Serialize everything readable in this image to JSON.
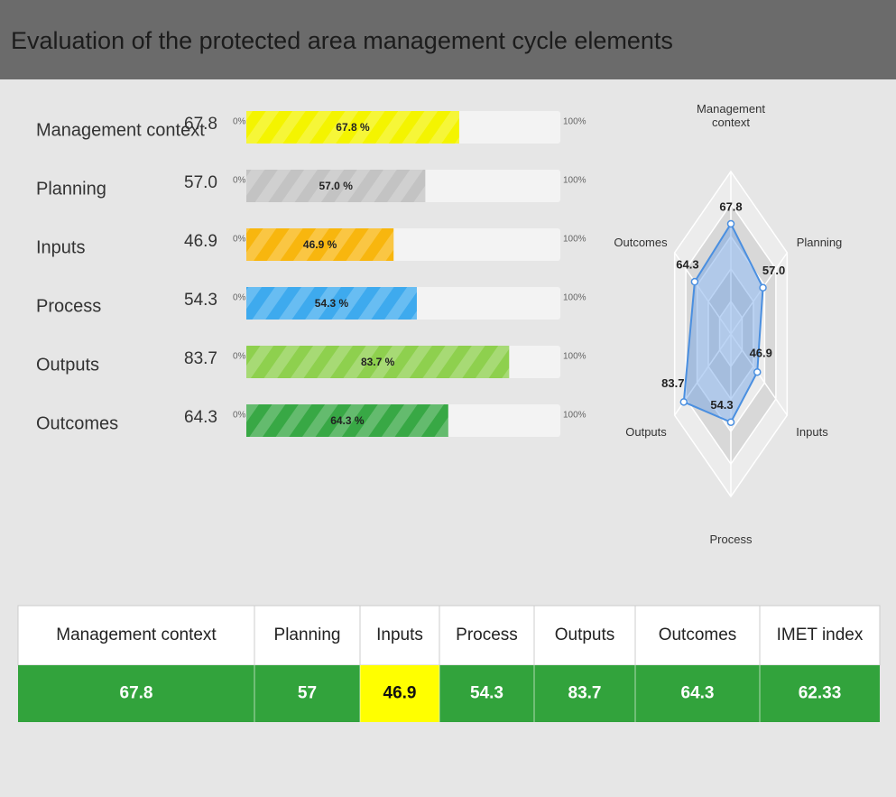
{
  "header": {
    "title": "Evaluation of the protected area management cycle elements"
  },
  "progress": {
    "labels": [
      "Management context",
      "Planning",
      "Inputs",
      "Process",
      "Outputs",
      "Outcomes"
    ],
    "values": [
      67.8,
      57,
      46.9,
      54.3,
      83.7,
      64.3
    ],
    "value_labels": [
      "67.8",
      "57.0",
      "46.9",
      "54.3",
      "83.7",
      "64.3"
    ],
    "bar_labels": [
      "67.8 %",
      "57.0 %",
      "46.9 %",
      "54.3 %",
      "83.7 %",
      "64.3 %"
    ],
    "colors": [
      "#f4f400",
      "#c3c3c3",
      "#f8b60e",
      "#3eaaee",
      "#8ed04e",
      "#38a845"
    ],
    "ticks": [
      {
        "value": 0,
        "label": "0%"
      },
      {
        "value": 100,
        "label": "100%"
      }
    ]
  },
  "radar": {
    "axes": [
      "Management context",
      "Planning",
      "Inputs",
      "Process",
      "Outputs",
      "Outcomes"
    ],
    "values": [
      67.8,
      57,
      46.9,
      54.3,
      83.7,
      64.3
    ],
    "value_labels": [
      "67.8",
      "57.0",
      "46.9",
      "54.3",
      "83.7",
      "64.3"
    ],
    "rmax": 100,
    "rings": 5,
    "color": "#4a8fe0"
  },
  "table": {
    "headers": [
      "Management context",
      "Planning",
      "Inputs",
      "Process",
      "Outputs",
      "Outcomes",
      "IMET index"
    ],
    "values": [
      67.8,
      57,
      46.9,
      54.3,
      83.7,
      64.3,
      62.33
    ],
    "cell_colors": [
      "#32a33c",
      "#32a33c",
      "#ffff00",
      "#32a33c",
      "#32a33c",
      "#32a33c",
      "#32a33c"
    ]
  }
}
